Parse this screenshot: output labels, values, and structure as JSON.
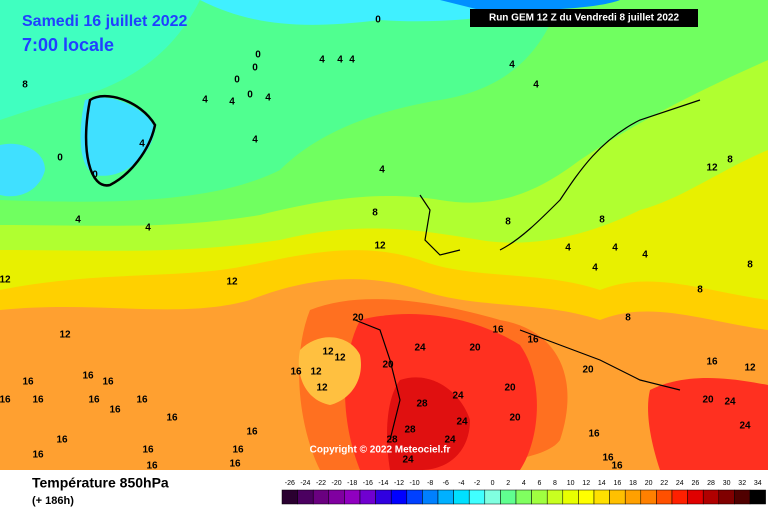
{
  "header": {
    "date": "Samedi 16 juillet 2022",
    "time": "7:00 locale",
    "run": "Run GEM 12 Z du Vendredi 8 juillet 2022"
  },
  "copyright": "Copyright © 2022 Meteociel.fr",
  "footer": {
    "title": "Température 850hPa",
    "lead": "(+ 186h)"
  },
  "scale": {
    "labels": [
      -26,
      -24,
      -22,
      -20,
      -18,
      -16,
      -14,
      -12,
      -10,
      -8,
      -6,
      -4,
      -2,
      0,
      2,
      4,
      6,
      8,
      10,
      12,
      14,
      16,
      18,
      20,
      22,
      24,
      26,
      28,
      30,
      32,
      34
    ],
    "colors": [
      "#2a0030",
      "#4b0060",
      "#6a0080",
      "#8000a0",
      "#9000c0",
      "#7000d0",
      "#3000e0",
      "#0000ff",
      "#0040ff",
      "#0080ff",
      "#00b0ff",
      "#00e0ff",
      "#40ffff",
      "#80ffe0",
      "#60ff90",
      "#80ff60",
      "#a0ff40",
      "#c8ff20",
      "#e8ff00",
      "#ffff00",
      "#ffe000",
      "#ffc000",
      "#ffa000",
      "#ff8000",
      "#ff5000",
      "#ff2000",
      "#e00000",
      "#b00000",
      "#800000",
      "#500000",
      "#000000"
    ]
  },
  "contour_labels": [
    0,
    0,
    0,
    4,
    4,
    4,
    0,
    0,
    4,
    4,
    4,
    4,
    4,
    8,
    0,
    0,
    4,
    4,
    4,
    4,
    4,
    8,
    8,
    12,
    12,
    12,
    12,
    8,
    4,
    4,
    4,
    4,
    8,
    8,
    8,
    12,
    8,
    16,
    16,
    20,
    24,
    20,
    20,
    12,
    12,
    16,
    12,
    12,
    16,
    16,
    16,
    16,
    16,
    16,
    16,
    16,
    16,
    20,
    16,
    12,
    24,
    20,
    28,
    24,
    20,
    20,
    24,
    24,
    28,
    16,
    16,
    16,
    16,
    16,
    16,
    16,
    16,
    16,
    16,
    24,
    28,
    24
  ]
}
